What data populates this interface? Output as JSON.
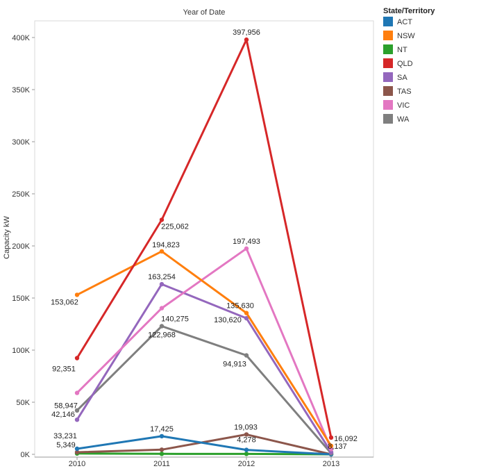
{
  "chart_data": {
    "type": "line",
    "title": "Year of Date",
    "ylabel": "Capacity kW",
    "xlabel": "",
    "categories": [
      "2010",
      "2011",
      "2012",
      "2013"
    ],
    "ylim": [
      0,
      420000
    ],
    "yticks": [
      0,
      50000,
      100000,
      150000,
      200000,
      250000,
      300000,
      350000,
      400000
    ],
    "ytick_labels": [
      "0K",
      "50K",
      "100K",
      "150K",
      "200K",
      "250K",
      "300K",
      "350K",
      "400K"
    ],
    "grid": false,
    "legend_title": "State/Territory",
    "legend_position": "right",
    "series": [
      {
        "name": "ACT",
        "color": "#1f77b4",
        "values": [
          5349,
          17425,
          4278,
          0
        ],
        "labels": [
          "5,349",
          "17,425",
          "4,278",
          ""
        ]
      },
      {
        "name": "NSW",
        "color": "#ff7f0e",
        "values": [
          153062,
          194823,
          135630,
          8137
        ],
        "labels": [
          "153,062",
          "194,823",
          "135,630",
          "8,137"
        ]
      },
      {
        "name": "NT",
        "color": "#2ca02c",
        "values": [
          800,
          500,
          400,
          0
        ],
        "labels": [
          "",
          "",
          "",
          ""
        ]
      },
      {
        "name": "QLD",
        "color": "#d62728",
        "values": [
          92351,
          225062,
          397956,
          16092
        ],
        "labels": [
          "92,351",
          "225,062",
          "397,956",
          "16,092"
        ]
      },
      {
        "name": "SA",
        "color": "#9467bd",
        "values": [
          33231,
          163254,
          130620,
          2000
        ],
        "labels": [
          "33,231",
          "163,254",
          "130,620",
          ""
        ]
      },
      {
        "name": "TAS",
        "color": "#8c564b",
        "values": [
          2000,
          4500,
          19093,
          0
        ],
        "labels": [
          "",
          "",
          "19,093",
          ""
        ]
      },
      {
        "name": "VIC",
        "color": "#e377c2",
        "values": [
          58947,
          140275,
          197493,
          5000
        ],
        "labels": [
          "58,947",
          "140,275",
          "197,493",
          ""
        ]
      },
      {
        "name": "WA",
        "color": "#7f7f7f",
        "values": [
          42146,
          122968,
          94913,
          1000
        ],
        "labels": [
          "42,146",
          "122,968",
          "94,913",
          ""
        ]
      }
    ]
  }
}
